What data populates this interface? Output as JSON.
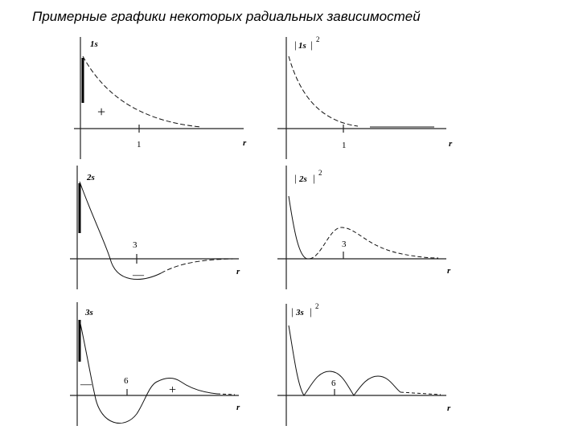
{
  "title": "Примерные графики некоторых радиальных зависимостей",
  "panels": [
    {
      "label_orb": "1s",
      "label_sq": "2",
      "tick_label": "1",
      "axis_label": "r",
      "signs": [
        "+"
      ]
    },
    {
      "label_orb": "1s",
      "label_sq": "2",
      "tick_label": "1",
      "axis_label": "r",
      "signs": []
    },
    {
      "label_orb": "2s",
      "label_sq": "2",
      "tick_label": "3",
      "axis_label": "r",
      "signs": [
        "—"
      ]
    },
    {
      "label_orb": "2s",
      "label_sq": "2",
      "tick_label": "3",
      "axis_label": "r",
      "signs": []
    },
    {
      "label_orb": "3s",
      "label_sq": "2",
      "tick_label": "6",
      "axis_label": "r",
      "signs": [
        "—",
        "+"
      ]
    },
    {
      "label_orb": "3s",
      "label_sq": "2",
      "tick_label": "6",
      "axis_label": "r",
      "signs": []
    }
  ]
}
